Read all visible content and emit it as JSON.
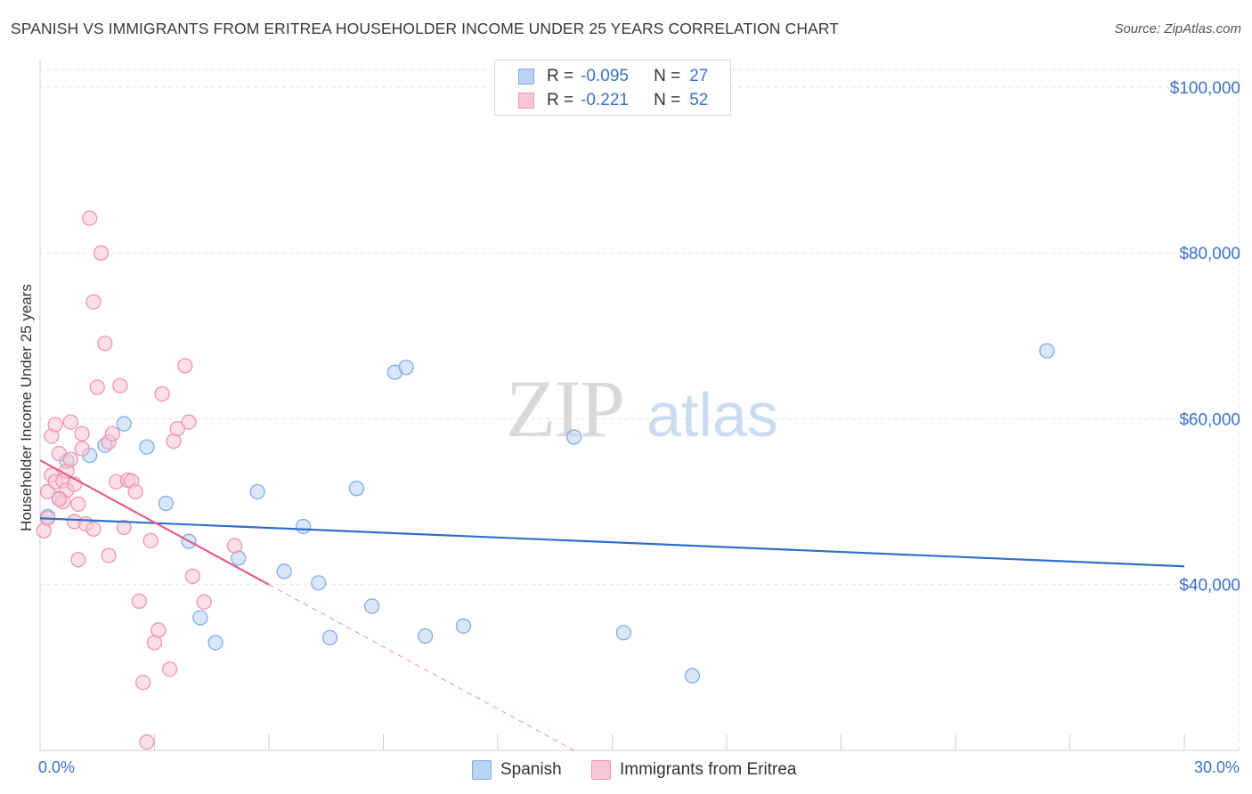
{
  "title": "SPANISH VS IMMIGRANTS FROM ERITREA HOUSEHOLDER INCOME UNDER 25 YEARS CORRELATION CHART",
  "source": "Source: ZipAtlas.com",
  "watermark": {
    "zip": "ZIP",
    "atlas": "atlas"
  },
  "legend": {
    "spanish": {
      "r_label": "R =",
      "r_value": "-0.095",
      "n_label": "N =",
      "n_value": "27"
    },
    "eritrea": {
      "r_label": "R =",
      "r_value": "-0.221",
      "n_label": "N =",
      "n_value": "52"
    }
  },
  "bottom_legend": {
    "spanish": "Spanish",
    "eritrea": "Immigrants from Eritrea"
  },
  "colors": {
    "spanish_fill": "#b9d3f3",
    "spanish_stroke": "#7faee6",
    "spanish_line": "#2f6fcc",
    "eritrea_fill": "#f9c6d6",
    "eritrea_stroke": "#ef94b2",
    "eritrea_line": "#e0608f",
    "axis_text": "#3a72c7",
    "grid": "#e3e3e3"
  },
  "chart_data": {
    "type": "scatter",
    "title": "SPANISH VS IMMIGRANTS FROM ERITREA HOUSEHOLDER INCOME UNDER 25 YEARS CORRELATION CHART",
    "xlabel": "",
    "ylabel": "Householder Income Under 25 years",
    "xlim": [
      0,
      30
    ],
    "ylim": [
      20000,
      103000
    ],
    "x_tick_labels": [
      "0.0%",
      "30.0%"
    ],
    "y_ticks": [
      {
        "value": 100000,
        "label": "$100,000"
      },
      {
        "value": 80000,
        "label": "$80,000"
      },
      {
        "value": 60000,
        "label": "$60,000"
      },
      {
        "value": 40000,
        "label": "$40,000"
      }
    ],
    "series": [
      {
        "name": "Spanish",
        "points": [
          [
            0.2,
            48200
          ],
          [
            0.5,
            50400
          ],
          [
            0.7,
            54900
          ],
          [
            1.3,
            55600
          ],
          [
            1.7,
            56800
          ],
          [
            2.2,
            59400
          ],
          [
            2.8,
            56600
          ],
          [
            3.3,
            49800
          ],
          [
            3.9,
            45200
          ],
          [
            4.2,
            36000
          ],
          [
            4.6,
            33000
          ],
          [
            5.2,
            43200
          ],
          [
            5.7,
            51200
          ],
          [
            6.4,
            41600
          ],
          [
            6.9,
            47000
          ],
          [
            7.3,
            40200
          ],
          [
            7.6,
            33600
          ],
          [
            8.3,
            51600
          ],
          [
            8.7,
            37400
          ],
          [
            9.3,
            65600
          ],
          [
            9.6,
            66200
          ],
          [
            10.1,
            33800
          ],
          [
            11.1,
            35000
          ],
          [
            14.0,
            57800
          ],
          [
            15.3,
            34200
          ],
          [
            17.1,
            29000
          ],
          [
            26.4,
            68200
          ]
        ],
        "trend": {
          "x0": 0.0,
          "y0": 48000,
          "x1": 30.0,
          "y1": 42200
        }
      },
      {
        "name": "Immigrants from Eritrea",
        "points": [
          [
            0.1,
            46500
          ],
          [
            0.2,
            48000
          ],
          [
            0.2,
            51200
          ],
          [
            0.3,
            53200
          ],
          [
            0.3,
            57900
          ],
          [
            0.4,
            52400
          ],
          [
            0.4,
            59300
          ],
          [
            0.5,
            55800
          ],
          [
            0.6,
            50000
          ],
          [
            0.6,
            52500
          ],
          [
            0.7,
            53700
          ],
          [
            0.7,
            51400
          ],
          [
            0.8,
            55100
          ],
          [
            0.8,
            59600
          ],
          [
            0.9,
            47600
          ],
          [
            0.9,
            52100
          ],
          [
            1.0,
            49700
          ],
          [
            1.0,
            43000
          ],
          [
            1.1,
            56400
          ],
          [
            1.1,
            58200
          ],
          [
            1.2,
            47300
          ],
          [
            1.3,
            84200
          ],
          [
            1.4,
            46700
          ],
          [
            1.4,
            74100
          ],
          [
            1.5,
            63800
          ],
          [
            1.6,
            80000
          ],
          [
            1.7,
            69100
          ],
          [
            1.8,
            43500
          ],
          [
            1.8,
            57200
          ],
          [
            1.9,
            58200
          ],
          [
            2.0,
            52400
          ],
          [
            2.1,
            64000
          ],
          [
            2.2,
            46900
          ],
          [
            2.3,
            52600
          ],
          [
            2.4,
            52500
          ],
          [
            2.5,
            51200
          ],
          [
            2.6,
            38000
          ],
          [
            2.7,
            28200
          ],
          [
            2.8,
            21000
          ],
          [
            2.9,
            45300
          ],
          [
            3.0,
            33000
          ],
          [
            3.1,
            34500
          ],
          [
            3.2,
            63000
          ],
          [
            3.4,
            29800
          ],
          [
            3.5,
            57300
          ],
          [
            3.6,
            58800
          ],
          [
            3.8,
            66400
          ],
          [
            3.9,
            59600
          ],
          [
            4.0,
            41000
          ],
          [
            4.3,
            37900
          ],
          [
            5.1,
            44700
          ],
          [
            0.5,
            50300
          ]
        ],
        "trend": {
          "x0": 0.0,
          "y0": 55000,
          "x1": 6.0,
          "y1": 40000
        },
        "trend_extension": {
          "x0": 6.0,
          "y0": 40000,
          "x1": 14.0,
          "y1": 20000
        }
      }
    ]
  }
}
